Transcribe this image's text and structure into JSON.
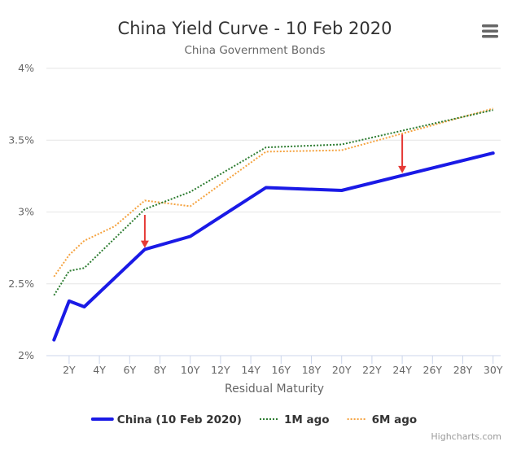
{
  "chart_data": {
    "type": "line",
    "title": "China Yield Curve - 10 Feb 2020",
    "subtitle": "China Government Bonds",
    "xlabel": "Residual Maturity",
    "ylabel": "",
    "x_ticks": [
      "2Y",
      "4Y",
      "6Y",
      "8Y",
      "10Y",
      "12Y",
      "14Y",
      "16Y",
      "18Y",
      "20Y",
      "22Y",
      "24Y",
      "26Y",
      "28Y",
      "30Y"
    ],
    "y_ticks": [
      "2%",
      "2.5%",
      "3%",
      "3.5%",
      "4%"
    ],
    "xlim": [
      0.5,
      30.5
    ],
    "ylim": [
      2,
      4
    ],
    "grid": true,
    "legend_position": "bottom-center",
    "series": [
      {
        "name": "China (10 Feb 2020)",
        "color": "#1a1ae6",
        "style": "solid",
        "x": [
          1,
          2,
          3,
          7,
          10,
          15,
          20,
          30
        ],
        "values": [
          2.11,
          2.38,
          2.34,
          2.74,
          2.83,
          3.17,
          3.15,
          3.41
        ]
      },
      {
        "name": "1M ago",
        "color": "#2e7d32",
        "style": "dotted",
        "x": [
          1,
          2,
          3,
          7,
          10,
          15,
          20,
          30
        ],
        "values": [
          2.42,
          2.59,
          2.61,
          3.02,
          3.14,
          3.45,
          3.47,
          3.71
        ]
      },
      {
        "name": "6M ago",
        "color": "#f5a340",
        "style": "dotted",
        "x": [
          1,
          2,
          3,
          5,
          7,
          10,
          15,
          20,
          30
        ],
        "values": [
          2.55,
          2.7,
          2.8,
          2.9,
          3.08,
          3.04,
          3.42,
          3.43,
          3.72
        ]
      }
    ],
    "annotations": [
      {
        "type": "arrow",
        "color": "#e53935",
        "x": 7,
        "from": 2.98,
        "to": 2.75
      },
      {
        "type": "arrow",
        "color": "#e53935",
        "x": 24,
        "from": 3.54,
        "to": 3.27
      }
    ]
  },
  "credits": "Highcharts.com",
  "menu_icon": "hamburger-menu-icon"
}
